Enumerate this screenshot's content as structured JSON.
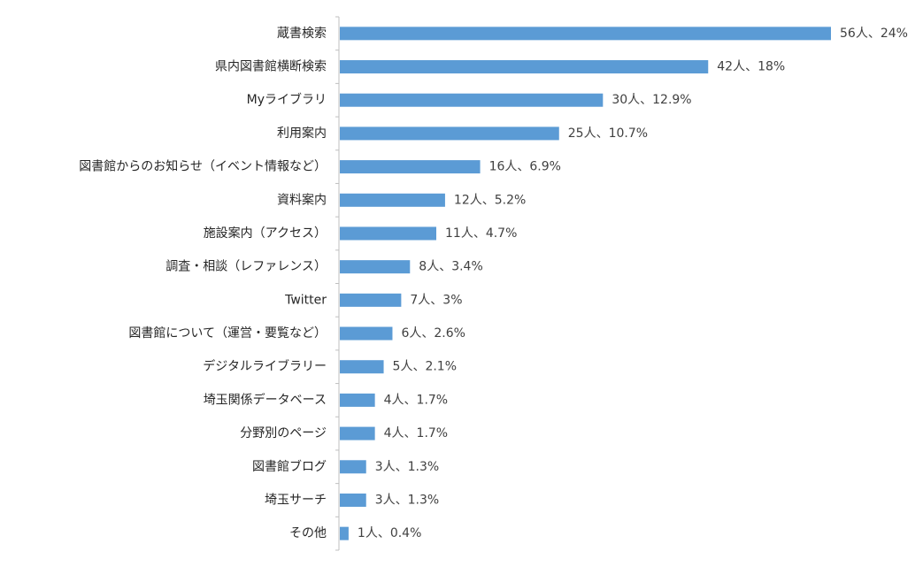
{
  "chart_data": {
    "type": "bar",
    "orientation": "horizontal",
    "bar_color": "#5b9bd5",
    "categories": [
      "蔵書検索",
      "県内図書館横断検索",
      "Myライブラリ",
      "利用案内",
      "図書館からのお知らせ（イベント情報など）",
      "資料案内",
      "施設案内（アクセス）",
      "調査・相談（レファレンス）",
      "Twitter",
      "図書館について（運営・要覧など）",
      "デジタルライブラリー",
      "埼玉関係データベース",
      "分野別のページ",
      "図書館ブログ",
      "埼玉サーチ",
      "その他"
    ],
    "values": [
      56,
      42,
      30,
      25,
      16,
      12,
      11,
      8,
      7,
      6,
      5,
      4,
      4,
      3,
      3,
      1
    ],
    "data_labels": [
      "56人、24%",
      "42人、18%",
      "30人、12.9%",
      "25人、10.7%",
      "16人、6.9%",
      "12人、5.2%",
      "11人、4.7%",
      "8人、3.4%",
      "7人、3%",
      "6人、2.6%",
      "5人、2.1%",
      "4人、1.7%",
      "4人、1.7%",
      "3人、1.3%",
      "3人、1.3%",
      "1人、0.4%"
    ],
    "xlim": [
      0,
      56
    ],
    "grid": false,
    "legend": "none"
  }
}
